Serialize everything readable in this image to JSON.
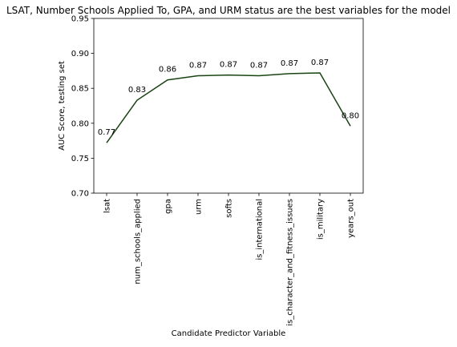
{
  "chart_data": {
    "type": "line",
    "title": "LSAT, Number Schools Applied To, GPA, and URM status are the best variables for the model",
    "xlabel": "Candidate Predictor Variable",
    "ylabel": "AUC Score, testing set",
    "categories": [
      "lsat",
      "num_schools_applied",
      "gpa",
      "urm",
      "softs",
      "is_international",
      "is_character_and_fitness_issues",
      "is_military",
      "years_out"
    ],
    "values": [
      0.772,
      0.833,
      0.862,
      0.868,
      0.869,
      0.868,
      0.871,
      0.872,
      0.796
    ],
    "data_labels": [
      "0.77",
      "0.83",
      "0.86",
      "0.87",
      "0.87",
      "0.87",
      "0.87",
      "0.87",
      "0.80"
    ],
    "ylim": [
      0.7,
      0.95
    ],
    "yticks": [
      0.7,
      0.75,
      0.8,
      0.85,
      0.9,
      0.95
    ],
    "ytick_labels": [
      "0.70",
      "0.75",
      "0.80",
      "0.85",
      "0.90",
      "0.95"
    ],
    "line_color": "#1a4314",
    "grid": false
  }
}
